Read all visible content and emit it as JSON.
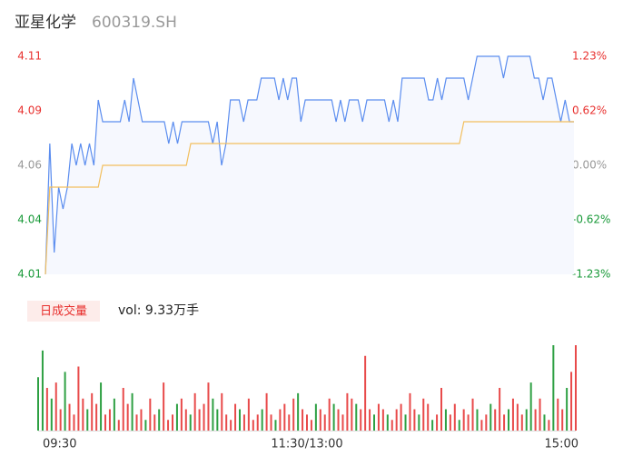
{
  "chart_data": [
    {
      "type": "line",
      "title": "亚星化学",
      "subtitle": "600319.SH",
      "ylim": [
        4.01,
        4.11
      ],
      "yticks": [
        4.11,
        {
          "value": 4.085,
          "label": "4.09"
        },
        4.06,
        {
          "value": 4.035,
          "label": "4.04"
        },
        4.01
      ],
      "y2lim": [
        -1.23,
        1.23
      ],
      "y2ticks": [
        {
          "value": 1.23,
          "label": "1.23%"
        },
        {
          "value": 0.615,
          "label": "0.62%"
        },
        {
          "value": 0,
          "label": "0.00%"
        },
        {
          "value": -0.615,
          "label": "-0.62%"
        },
        {
          "value": -1.23,
          "label": "-1.23%"
        }
      ],
      "tick_colors": {
        "up": "#e8312f",
        "flat": "#999999",
        "down": "#1a9a3a"
      },
      "area_color": "#f6f8fe",
      "series": [
        {
          "color": "#5b8def",
          "values": [
            4.01,
            4.07,
            4.02,
            4.05,
            4.04,
            4.05,
            4.07,
            4.06,
            4.07,
            4.06,
            4.07,
            4.06,
            4.09,
            4.08,
            4.08,
            4.08,
            4.08,
            4.08,
            4.09,
            4.08,
            4.1,
            4.09,
            4.08,
            4.08,
            4.08,
            4.08,
            4.08,
            4.08,
            4.07,
            4.08,
            4.07,
            4.08,
            4.08,
            4.08,
            4.08,
            4.08,
            4.08,
            4.08,
            4.07,
            4.08,
            4.06,
            4.07,
            4.09,
            4.09,
            4.09,
            4.08,
            4.09,
            4.09,
            4.09,
            4.1,
            4.1,
            4.1,
            4.1,
            4.09,
            4.1,
            4.09,
            4.1,
            4.1,
            4.08,
            4.09,
            4.09,
            4.09,
            4.09,
            4.09,
            4.09,
            4.09,
            4.08,
            4.09,
            4.08,
            4.09,
            4.09,
            4.09,
            4.08,
            4.09,
            4.09,
            4.09,
            4.09,
            4.09,
            4.08,
            4.09,
            4.08,
            4.1,
            4.1,
            4.1,
            4.1,
            4.1,
            4.1,
            4.09,
            4.09,
            4.1,
            4.09,
            4.1,
            4.1,
            4.1,
            4.1,
            4.1,
            4.09,
            4.1,
            4.11,
            4.11,
            4.11,
            4.11,
            4.11,
            4.11,
            4.1,
            4.11,
            4.11,
            4.11,
            4.11,
            4.11,
            4.11,
            4.1,
            4.1,
            4.09,
            4.1,
            4.1,
            4.09,
            4.08,
            4.09,
            4.08,
            4.08
          ]
        },
        {
          "color": "#f2bf5e",
          "values": [
            4.01,
            4.05,
            4.05,
            4.05,
            4.05,
            4.05,
            4.05,
            4.05,
            4.05,
            4.05,
            4.05,
            4.05,
            4.05,
            4.06,
            4.06,
            4.06,
            4.06,
            4.06,
            4.06,
            4.06,
            4.06,
            4.06,
            4.06,
            4.06,
            4.06,
            4.06,
            4.06,
            4.06,
            4.06,
            4.06,
            4.06,
            4.06,
            4.06,
            4.07,
            4.07,
            4.07,
            4.07,
            4.07,
            4.07,
            4.07,
            4.07,
            4.07,
            4.07,
            4.07,
            4.07,
            4.07,
            4.07,
            4.07,
            4.07,
            4.07,
            4.07,
            4.07,
            4.07,
            4.07,
            4.07,
            4.07,
            4.07,
            4.07,
            4.07,
            4.07,
            4.07,
            4.07,
            4.07,
            4.07,
            4.07,
            4.07,
            4.07,
            4.07,
            4.07,
            4.07,
            4.07,
            4.07,
            4.07,
            4.07,
            4.07,
            4.07,
            4.07,
            4.07,
            4.07,
            4.07,
            4.07,
            4.07,
            4.07,
            4.07,
            4.07,
            4.07,
            4.07,
            4.07,
            4.07,
            4.07,
            4.07,
            4.07,
            4.07,
            4.07,
            4.07,
            4.08,
            4.08,
            4.08,
            4.08,
            4.08,
            4.08,
            4.08,
            4.08,
            4.08,
            4.08,
            4.08,
            4.08,
            4.08,
            4.08,
            4.08,
            4.08,
            4.08,
            4.08,
            4.08,
            4.08,
            4.08,
            4.08,
            4.08,
            4.08,
            4.08,
            4.08
          ]
        }
      ]
    },
    {
      "type": "bar",
      "label": "日成交量",
      "subtitle": "vol: 9.33万手",
      "ylim": [
        0,
        80
      ],
      "xlim": [
        0,
        120
      ],
      "xticks": [
        {
          "value": 0,
          "label": "09:30"
        },
        {
          "value": 60,
          "label": "11:30/13:00"
        },
        {
          "value": 120,
          "label": "15:00"
        }
      ],
      "colors": {
        "r": "#e84a4a",
        "g": "#2ea043"
      },
      "values": [
        50,
        75,
        40,
        30,
        45,
        20,
        55,
        25,
        15,
        60,
        30,
        20,
        35,
        25,
        45,
        15,
        20,
        30,
        10,
        40,
        25,
        35,
        15,
        20,
        10,
        30,
        15,
        20,
        45,
        10,
        15,
        25,
        30,
        20,
        15,
        35,
        20,
        25,
        45,
        30,
        20,
        35,
        15,
        10,
        25,
        20,
        15,
        30,
        10,
        15,
        20,
        35,
        15,
        10,
        20,
        25,
        15,
        30,
        35,
        20,
        15,
        10,
        25,
        20,
        15,
        30,
        25,
        20,
        15,
        35,
        30,
        25,
        20,
        70,
        20,
        15,
        25,
        20,
        15,
        10,
        20,
        25,
        15,
        35,
        20,
        15,
        30,
        25,
        10,
        15,
        40,
        20,
        15,
        25,
        10,
        20,
        15,
        30,
        20,
        10,
        15,
        25,
        20,
        40,
        15,
        20,
        30,
        25,
        15,
        20,
        45,
        20,
        30,
        15,
        10,
        80,
        30,
        20,
        40,
        55,
        80
      ],
      "directions": [
        "g",
        "g",
        "r",
        "g",
        "r",
        "r",
        "g",
        "r",
        "r",
        "r",
        "r",
        "g",
        "r",
        "r",
        "g",
        "r",
        "r",
        "g",
        "r",
        "r",
        "r",
        "g",
        "r",
        "r",
        "g",
        "r",
        "r",
        "g",
        "r",
        "r",
        "r",
        "g",
        "r",
        "r",
        "g",
        "r",
        "r",
        "r",
        "r",
        "g",
        "g",
        "r",
        "r",
        "r",
        "r",
        "g",
        "r",
        "r",
        "r",
        "r",
        "g",
        "r",
        "r",
        "g",
        "r",
        "r",
        "r",
        "r",
        "g",
        "r",
        "r",
        "r",
        "g",
        "r",
        "r",
        "r",
        "g",
        "r",
        "r",
        "r",
        "r",
        "g",
        "r",
        "r",
        "r",
        "g",
        "r",
        "r",
        "g",
        "r",
        "r",
        "r",
        "g",
        "r",
        "r",
        "g",
        "r",
        "r",
        "g",
        "r",
        "r",
        "g",
        "r",
        "r",
        "g",
        "r",
        "r",
        "r",
        "g",
        "r",
        "r",
        "g",
        "r",
        "r",
        "r",
        "g",
        "r",
        "r",
        "r",
        "g",
        "g",
        "r",
        "r",
        "g",
        "r",
        "g",
        "r",
        "r",
        "g",
        "r",
        "r"
      ]
    }
  ]
}
